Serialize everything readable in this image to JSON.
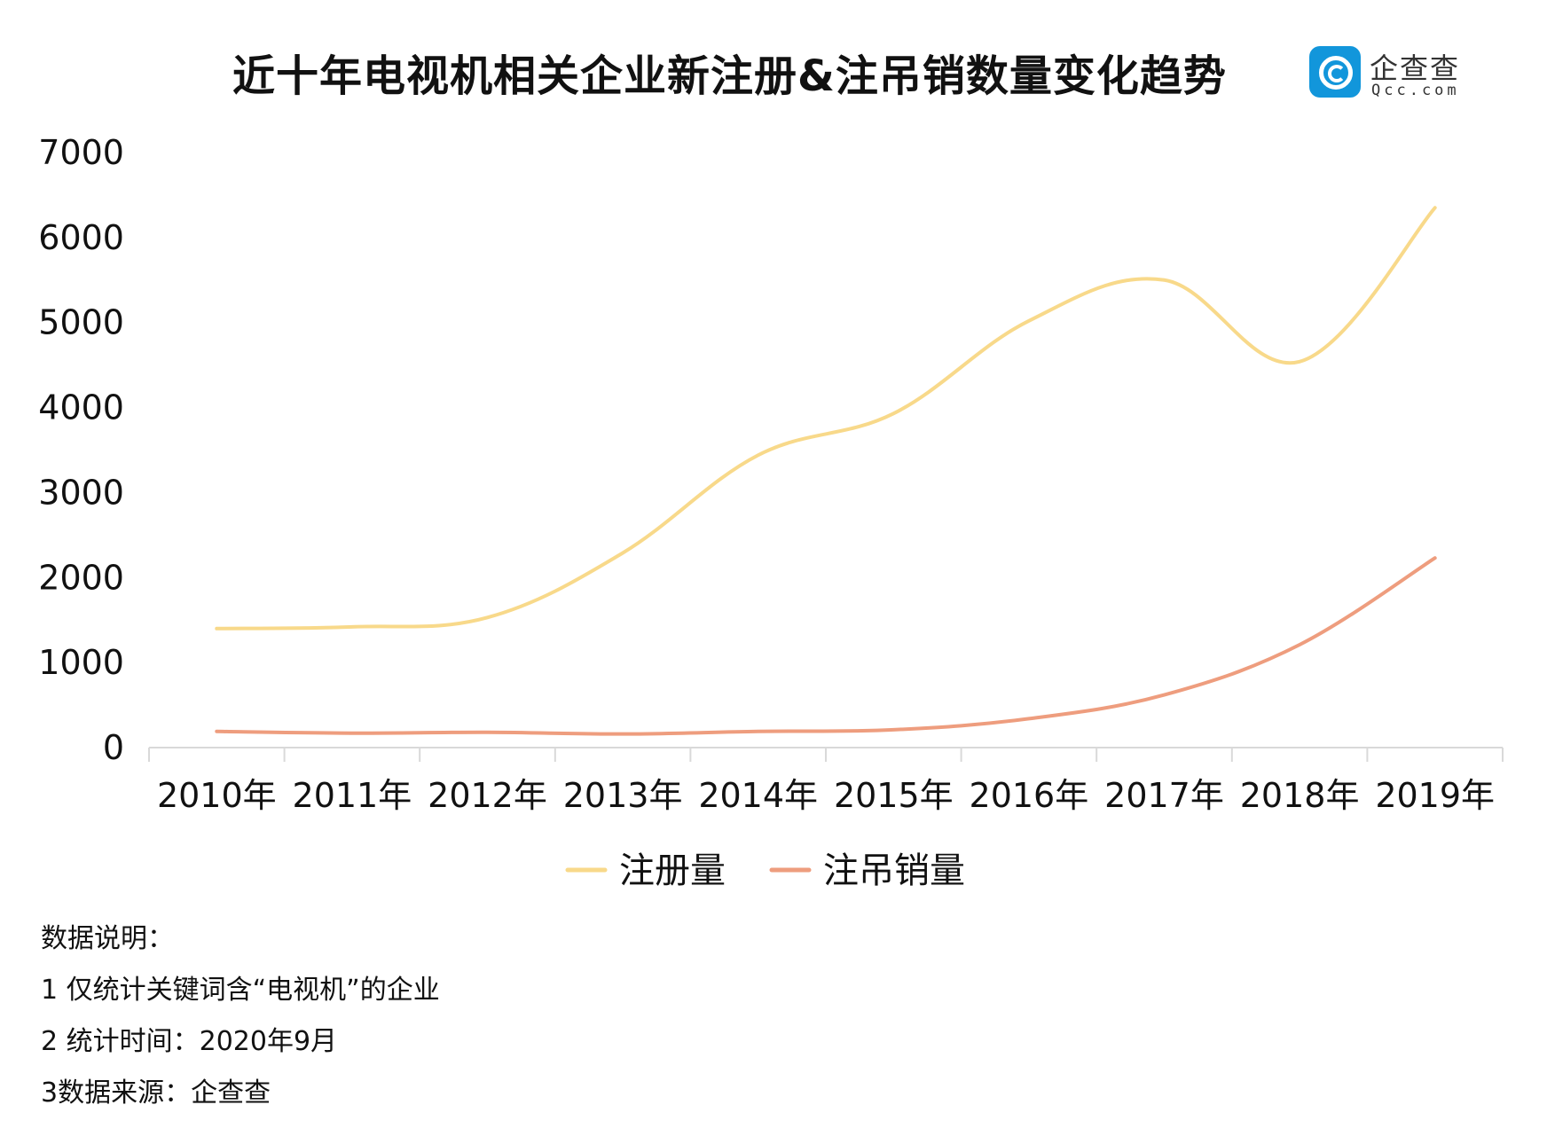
{
  "title": "近十年电视机相关企业新注册&注吊销数量变化趋势",
  "logo": {
    "name_cn": "企查查",
    "name_en": "Qcc.com",
    "icon": "qcc-logo-icon",
    "color": "#1296db"
  },
  "chart_data": {
    "type": "line",
    "title": "近十年电视机相关企业新注册&注吊销数量变化趋势",
    "categories": [
      "2010年",
      "2011年",
      "2012年",
      "2013年",
      "2014年",
      "2015年",
      "2016年",
      "2017年",
      "2018年",
      "2019年"
    ],
    "ylim": [
      0,
      7000
    ],
    "yticks": [
      0,
      1000,
      2000,
      3000,
      4000,
      5000,
      6000,
      7000
    ],
    "grid": false,
    "legend": "bottom-center",
    "series": [
      {
        "name": "注册量",
        "color": "#f8d98a",
        "values": [
          1400,
          1420,
          1530,
          2290,
          3440,
          3930,
          5020,
          5500,
          4540,
          6350
        ]
      },
      {
        "name": "注吊销量",
        "color": "#ee9d7e",
        "values": [
          190,
          170,
          180,
          160,
          190,
          210,
          340,
          620,
          1210,
          2230
        ]
      }
    ]
  },
  "notes": [
    "数据说明：",
    "1 仅统计关键词含“电视机”的企业",
    "2 统计时间：2020年9月",
    "3数据来源：企查查"
  ]
}
